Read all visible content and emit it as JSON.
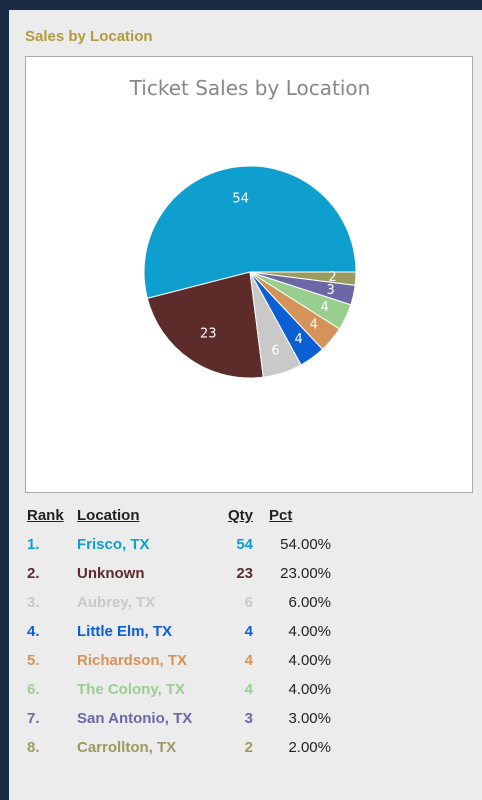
{
  "panel_title": "Sales by Location",
  "chart_data": {
    "type": "pie",
    "title": "Ticket Sales by Location",
    "categories": [
      "Frisco, TX",
      "Unknown",
      "Aubrey, TX",
      "Little Elm, TX",
      "Richardson, TX",
      "The Colony, TX",
      "San Antonio, TX",
      "Carrollton, TX"
    ],
    "values": [
      54,
      23,
      6,
      4,
      4,
      4,
      3,
      2
    ],
    "colors": [
      "#0e9fcf",
      "#5e2b2b",
      "#c9c9c9",
      "#0b5fd4",
      "#d4935a",
      "#98cf8f",
      "#6c67a6",
      "#9b9b60"
    ]
  },
  "table": {
    "headers": [
      "Rank",
      "Location",
      "Qty",
      "Pct"
    ],
    "ranks": [
      "1.",
      "2.",
      "3.",
      "4.",
      "5.",
      "6.",
      "7.",
      "8."
    ],
    "pcts": [
      "54.00%",
      "23.00%",
      "6.00%",
      "4.00%",
      "4.00%",
      "4.00%",
      "3.00%",
      "2.00%"
    ]
  }
}
